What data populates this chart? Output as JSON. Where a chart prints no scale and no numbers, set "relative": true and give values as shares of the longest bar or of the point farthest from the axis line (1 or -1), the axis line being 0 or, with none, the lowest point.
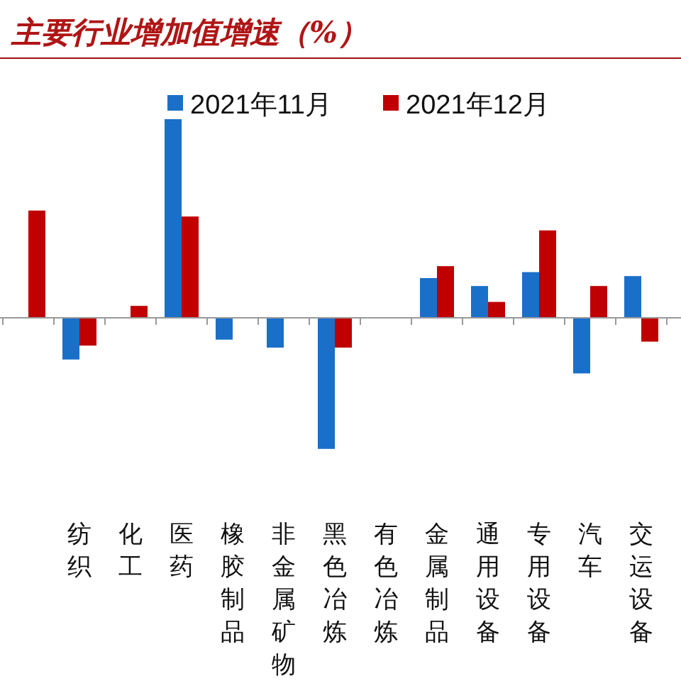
{
  "chart_data": {
    "type": "bar",
    "title": "主要行业增加值增速（%）",
    "relative": true,
    "legend": "top",
    "categories": [
      null,
      "纺织",
      "化工",
      "医药",
      "橡胶制品",
      "非金属矿物",
      "黑色冶炼",
      "有色冶炼",
      "金属制品",
      "通用设备",
      "专用设备",
      "汽车",
      "交运设备"
    ],
    "series": [
      {
        "name": "2021年11月",
        "color": "#1a6fc9",
        "values": [
          null,
          -0.21,
          null,
          1,
          -0.11,
          -0.15,
          -0.66,
          null,
          0.2,
          0.16,
          0.23,
          -0.28,
          0.21
        ]
      },
      {
        "name": "2021年12月",
        "color": "#c00000",
        "values": [
          0.54,
          -0.14,
          0.06,
          0.51,
          null,
          null,
          -0.15,
          null,
          0.26,
          0.08,
          0.44,
          0.16,
          -0.12
        ]
      }
    ]
  }
}
